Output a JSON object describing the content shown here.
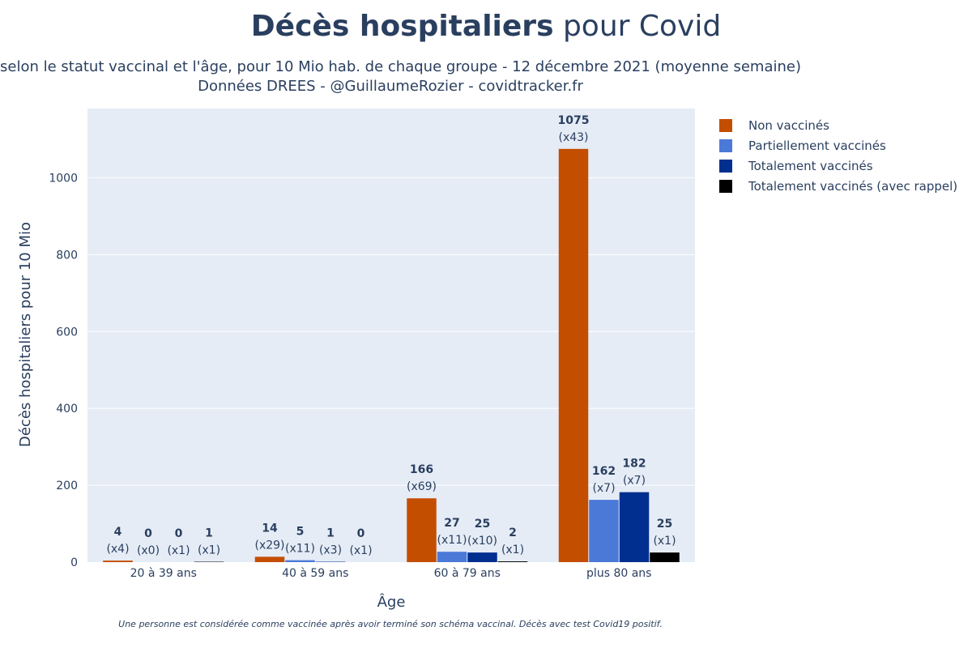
{
  "title": {
    "bold": "Décès hospitaliers",
    "rest": " pour Covid"
  },
  "subtitle": {
    "line1": "selon le statut vaccinal et l'âge, pour 10 Mio hab. de chaque groupe - 12 décembre 2021 (moyenne semaine)",
    "line2": "Données DREES - @GuillaumeRozier - covidtracker.fr"
  },
  "footnote": "Une personne est considérée comme vaccinée après avoir terminé son schéma vaccinal. Décès avec test Covid19 positif.",
  "chart_data": {
    "type": "bar",
    "title": "Décès hospitaliers pour Covid",
    "xlabel": "Âge",
    "ylabel": "Décès hospitaliers pour 10 Mio",
    "ylim": [
      0,
      1180
    ],
    "yticks": [
      0,
      200,
      400,
      600,
      800,
      1000
    ],
    "grid": true,
    "legend_position": "right",
    "categories": [
      "20 à 39 ans",
      "40 à 59 ans",
      "60 à 79 ans",
      "plus 80 ans"
    ],
    "series": [
      {
        "name": "Non vaccinés",
        "color": "#c44e00",
        "values": [
          4,
          14,
          166,
          1075
        ],
        "ratios": [
          "(x4)",
          "(x29)",
          "(x69)",
          "(x43)"
        ]
      },
      {
        "name": "Partiellement vaccinés",
        "color": "#4a79d8",
        "values": [
          0,
          5,
          27,
          162
        ],
        "ratios": [
          "(x0)",
          "(x11)",
          "(x11)",
          "(x7)"
        ]
      },
      {
        "name": "Totalement vaccinés",
        "color": "#002f8f",
        "values": [
          0,
          1,
          25,
          182
        ],
        "ratios": [
          "(x1)",
          "(x3)",
          "(x10)",
          "(x7)"
        ]
      },
      {
        "name": "Totalement vaccinés (avec rappel)",
        "color": "#000000",
        "values": [
          1,
          0,
          2,
          25
        ],
        "ratios": [
          "(x1)",
          "(x1)",
          "(x1)",
          "(x1)"
        ]
      }
    ]
  }
}
